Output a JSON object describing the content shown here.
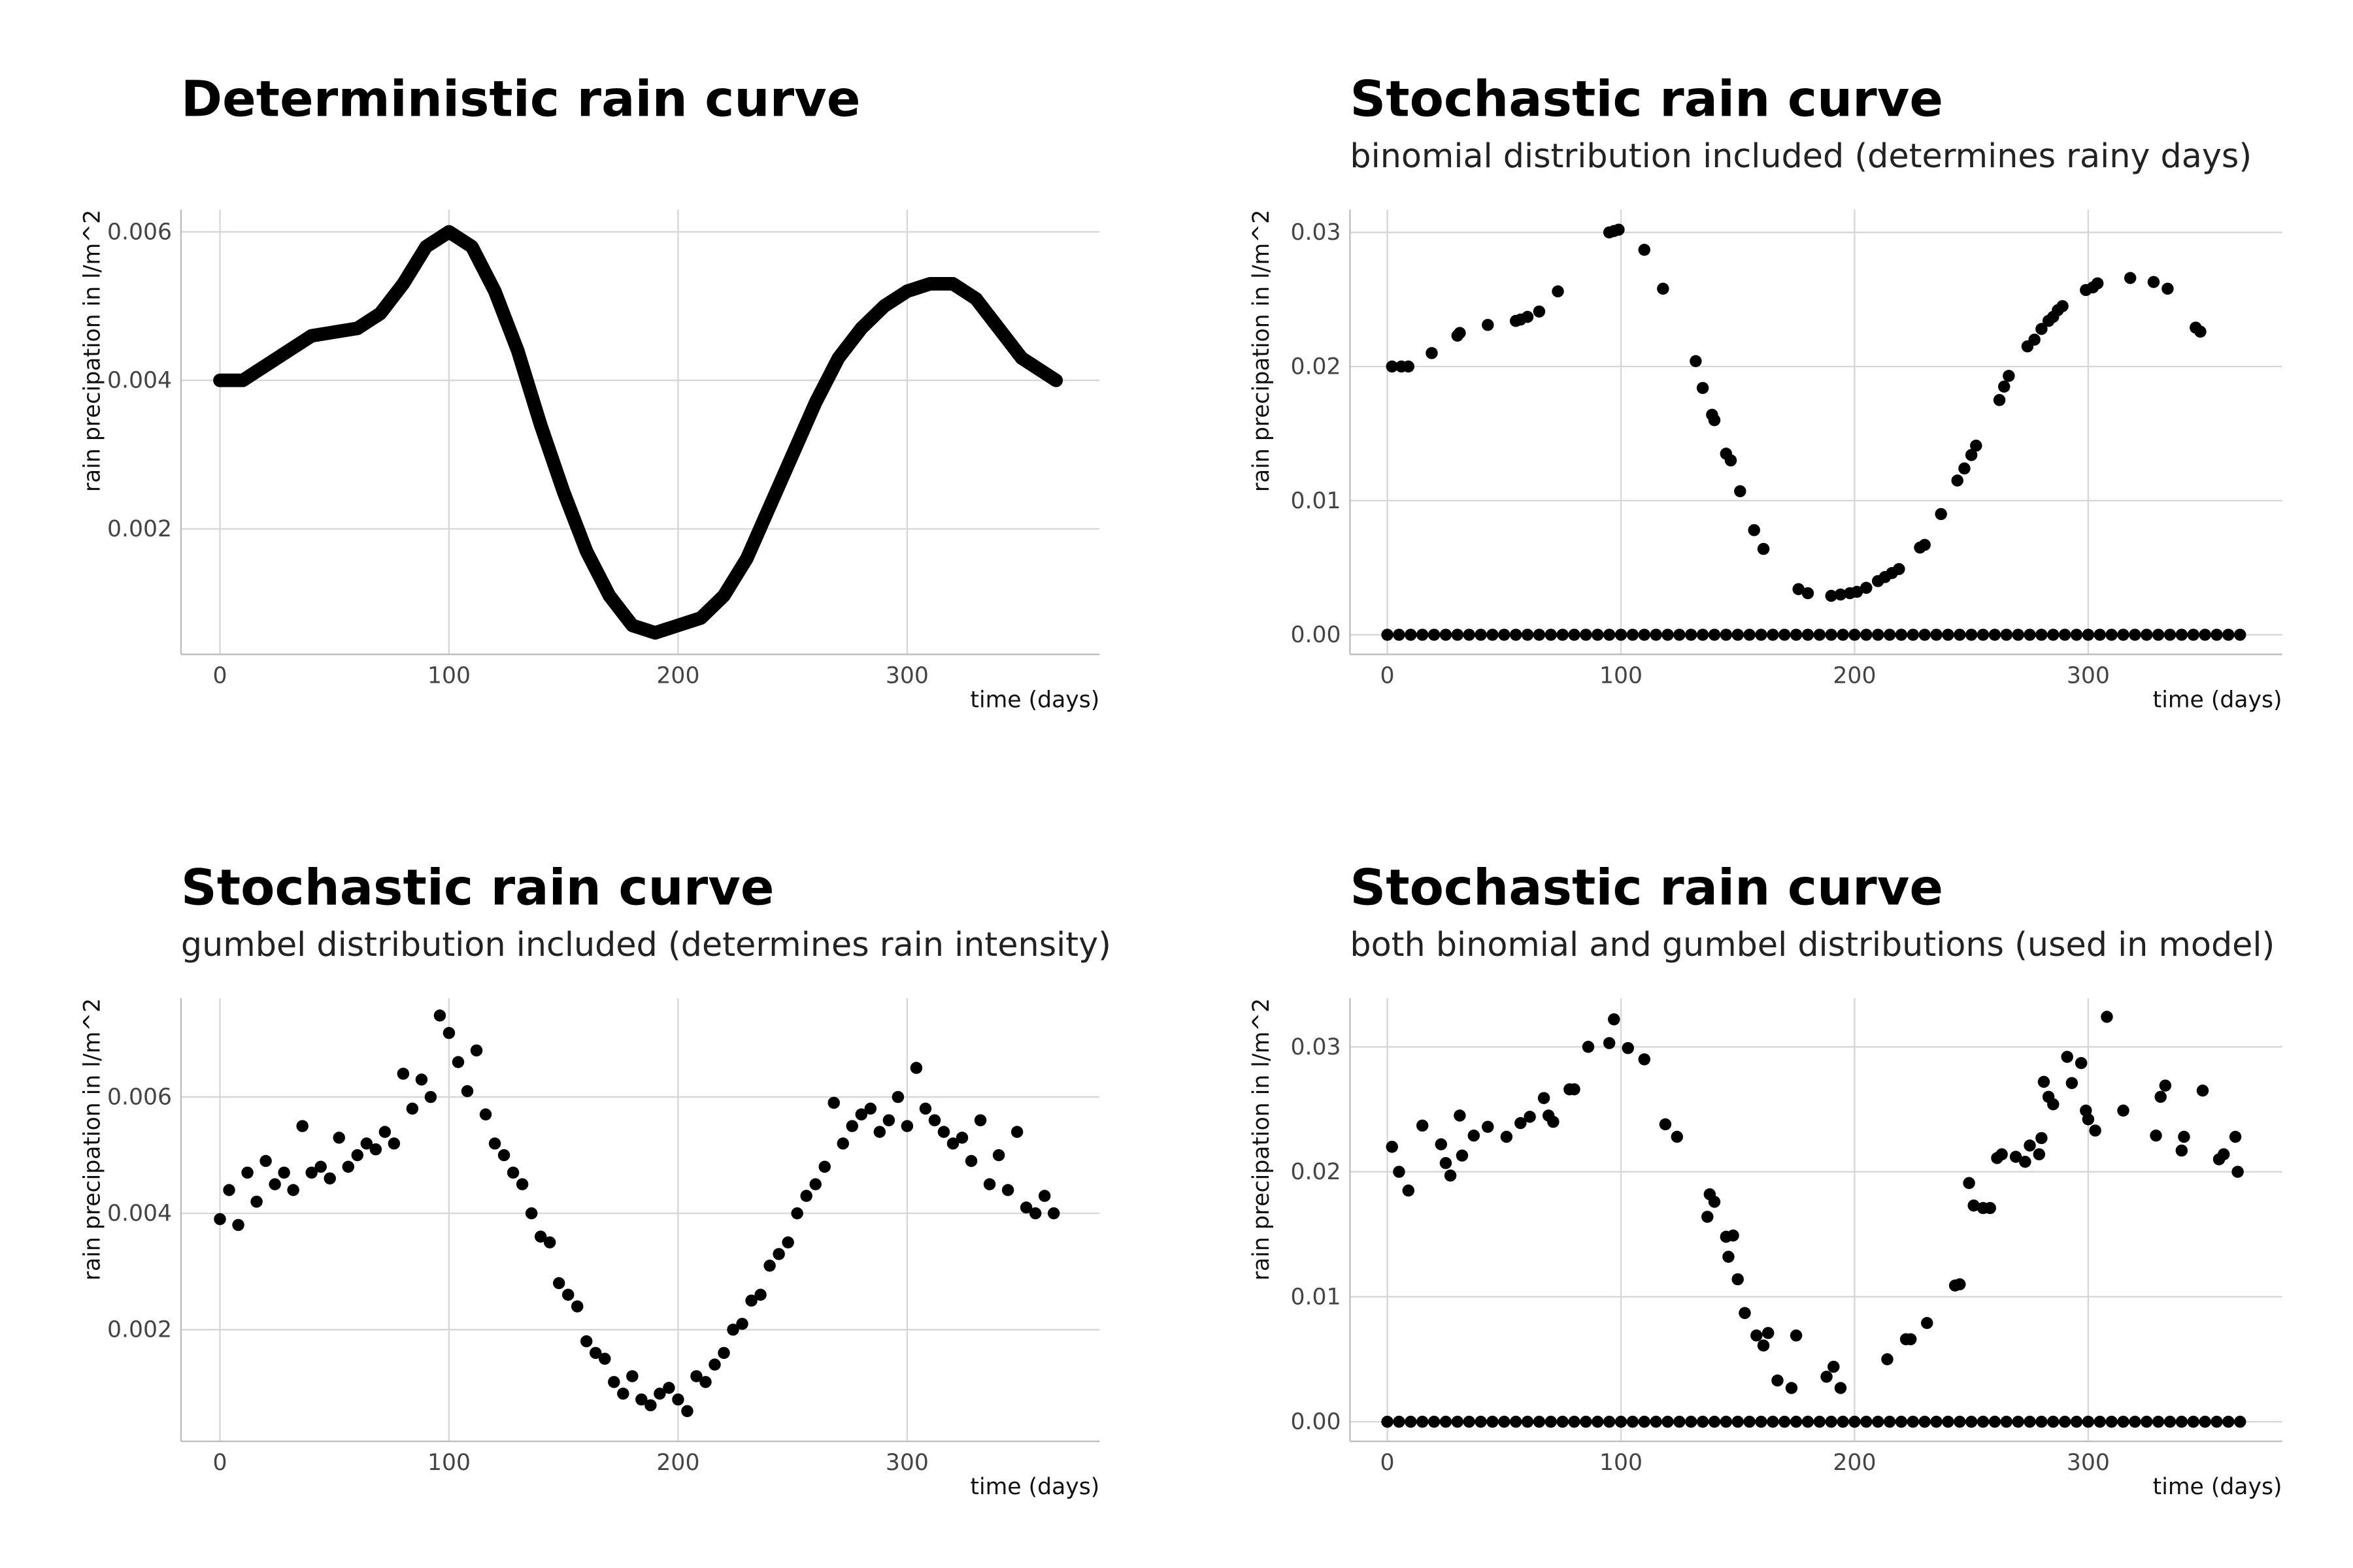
{
  "chart_data": [
    {
      "type": "line",
      "title": "Deterministic rain curve",
      "x_label": "time (days)",
      "y_label": "rain precipation in l/m^2",
      "x": [
        0,
        10,
        20,
        30,
        40,
        50,
        60,
        70,
        80,
        90,
        100,
        110,
        120,
        130,
        140,
        150,
        160,
        170,
        180,
        190,
        200,
        210,
        220,
        230,
        240,
        250,
        260,
        270,
        280,
        290,
        300,
        310,
        320,
        330,
        340,
        350,
        360,
        365
      ],
      "values": [
        0.004,
        0.004,
        0.0042,
        0.0044,
        0.0046,
        0.00465,
        0.0047,
        0.0049,
        0.0053,
        0.0058,
        0.006,
        0.0058,
        0.0052,
        0.0044,
        0.0034,
        0.0025,
        0.0017,
        0.0011,
        0.0007,
        0.0006,
        0.0007,
        0.0008,
        0.0011,
        0.0016,
        0.0023,
        0.003,
        0.0037,
        0.0043,
        0.0047,
        0.005,
        0.0052,
        0.0053,
        0.0053,
        0.0051,
        0.0047,
        0.0043,
        0.0041,
        0.004
      ],
      "color": "#000000",
      "grid": true,
      "xlim": [
        -17,
        384
      ],
      "ylim": [
        0.00031,
        0.0063
      ],
      "xticks": [
        0,
        100,
        200,
        300
      ],
      "yticks": [
        0.002,
        0.004,
        0.006
      ]
    },
    {
      "type": "scatter",
      "title": "Stochastic rain curve",
      "subtitle": "binomial distribution included (determines rainy days)",
      "x_label": "time (days)",
      "y_label": "rain precipation in l/m^2",
      "x": [
        2,
        6,
        9,
        19,
        30,
        31,
        43,
        55,
        57,
        60,
        65,
        73,
        95,
        97,
        99,
        110,
        118,
        132,
        135,
        139,
        140,
        145,
        147,
        151,
        157,
        161,
        176,
        180,
        190,
        194,
        198,
        201,
        205,
        210,
        213,
        216,
        219,
        228,
        230,
        237,
        244,
        247,
        250,
        252,
        262,
        264,
        266,
        274,
        277,
        280,
        283,
        285,
        287,
        289,
        299,
        302,
        304,
        318,
        328,
        334,
        346,
        348,
        0,
        5,
        10,
        15,
        20,
        25,
        30,
        35,
        40,
        45,
        50,
        55,
        60,
        65,
        70,
        75,
        80,
        85,
        90,
        95,
        100,
        105,
        110,
        115,
        120,
        125,
        130,
        135,
        140,
        145,
        150,
        155,
        160,
        165,
        170,
        175,
        180,
        185,
        190,
        195,
        200,
        205,
        210,
        215,
        220,
        225,
        230,
        235,
        240,
        245,
        250,
        255,
        260,
        265,
        270,
        275,
        280,
        285,
        290,
        295,
        300,
        305,
        310,
        315,
        320,
        325,
        330,
        335,
        340,
        345,
        350,
        355,
        360,
        365
      ],
      "values": [
        0.02,
        0.02,
        0.02,
        0.021,
        0.0223,
        0.0225,
        0.0231,
        0.0234,
        0.0235,
        0.0237,
        0.0241,
        0.0256,
        0.03,
        0.0301,
        0.0302,
        0.0287,
        0.0258,
        0.0204,
        0.0184,
        0.0164,
        0.016,
        0.0135,
        0.013,
        0.0107,
        0.0078,
        0.0064,
        0.0034,
        0.0031,
        0.0029,
        0.003,
        0.0031,
        0.0032,
        0.0035,
        0.004,
        0.0043,
        0.0046,
        0.0049,
        0.0065,
        0.0067,
        0.009,
        0.0115,
        0.0124,
        0.0134,
        0.0141,
        0.0175,
        0.0185,
        0.0193,
        0.0215,
        0.022,
        0.0228,
        0.0234,
        0.0237,
        0.0242,
        0.0245,
        0.0257,
        0.0259,
        0.0262,
        0.0266,
        0.0263,
        0.0258,
        0.0229,
        0.0226,
        0,
        0,
        0,
        0,
        0,
        0,
        0,
        0,
        0,
        0,
        0,
        0,
        0,
        0,
        0,
        0,
        0,
        0,
        0,
        0,
        0,
        0,
        0,
        0,
        0,
        0,
        0,
        0,
        0,
        0,
        0,
        0,
        0,
        0,
        0,
        0,
        0,
        0,
        0,
        0,
        0,
        0,
        0,
        0,
        0,
        0,
        0,
        0,
        0,
        0,
        0,
        0,
        0,
        0,
        0,
        0,
        0,
        0,
        0,
        0,
        0,
        0,
        0,
        0,
        0,
        0,
        0,
        0,
        0,
        0,
        0,
        0,
        0,
        0
      ],
      "color": "#000000",
      "grid": true,
      "xlim": [
        -16,
        383
      ],
      "ylim": [
        -0.00146,
        0.0317
      ],
      "xticks": [
        0,
        100,
        200,
        300
      ],
      "yticks": [
        {
          "value": 0,
          "label": "0.00"
        },
        {
          "value": 0.01,
          "label": "0.01"
        },
        {
          "value": 0.02,
          "label": "0.02"
        },
        {
          "value": 0.03,
          "label": "0.03"
        }
      ]
    },
    {
      "type": "scatter",
      "title": "Stochastic rain curve",
      "subtitle": "gumbel distribution included (determines rain intensity)",
      "x_label": "time (days)",
      "y_label": "rain precipation in l/m^2",
      "x": [
        0,
        4,
        8,
        12,
        16,
        20,
        24,
        28,
        32,
        36,
        40,
        44,
        48,
        52,
        56,
        60,
        64,
        68,
        72,
        76,
        80,
        84,
        88,
        92,
        96,
        100,
        104,
        108,
        112,
        116,
        120,
        124,
        128,
        132,
        136,
        140,
        144,
        148,
        152,
        156,
        160,
        164,
        168,
        172,
        176,
        180,
        184,
        188,
        192,
        196,
        200,
        204,
        208,
        212,
        216,
        220,
        224,
        228,
        232,
        236,
        240,
        244,
        248,
        252,
        256,
        260,
        264,
        268,
        272,
        276,
        280,
        284,
        288,
        292,
        296,
        300,
        304,
        308,
        312,
        316,
        320,
        324,
        328,
        332,
        336,
        340,
        344,
        348,
        352,
        356,
        360,
        364
      ],
      "values": [
        0.0039,
        0.0044,
        0.0038,
        0.0047,
        0.0042,
        0.0049,
        0.0045,
        0.0047,
        0.0044,
        0.0055,
        0.0047,
        0.0048,
        0.0046,
        0.0053,
        0.0048,
        0.005,
        0.0052,
        0.0051,
        0.0054,
        0.0052,
        0.0064,
        0.0058,
        0.0063,
        0.006,
        0.0074,
        0.0071,
        0.0066,
        0.0061,
        0.0068,
        0.0057,
        0.0052,
        0.005,
        0.0047,
        0.0045,
        0.004,
        0.0036,
        0.0035,
        0.0028,
        0.0026,
        0.0024,
        0.0018,
        0.0016,
        0.0015,
        0.0011,
        0.0009,
        0.0012,
        0.0008,
        0.0007,
        0.0009,
        0.001,
        0.0008,
        0.0006,
        0.0012,
        0.0011,
        0.0014,
        0.0016,
        0.002,
        0.0021,
        0.0025,
        0.0026,
        0.0031,
        0.0033,
        0.0035,
        0.004,
        0.0043,
        0.0045,
        0.0048,
        0.0059,
        0.0052,
        0.0055,
        0.0057,
        0.0058,
        0.0054,
        0.0056,
        0.006,
        0.0055,
        0.0065,
        0.0058,
        0.0056,
        0.0054,
        0.0052,
        0.0053,
        0.0049,
        0.0056,
        0.0045,
        0.005,
        0.0044,
        0.0054,
        0.0041,
        0.004,
        0.0043,
        0.004
      ],
      "color": "#000000",
      "grid": true,
      "xlim": [
        -17,
        384
      ],
      "ylim": [
        8e-05,
        0.0077
      ],
      "xticks": [
        0,
        100,
        200,
        300
      ],
      "yticks": [
        0.002,
        0.004,
        0.006
      ]
    },
    {
      "type": "scatter",
      "title": "Stochastic rain curve",
      "subtitle": "both binomial and gumbel distributions (used in model)",
      "x_label": "time (days)",
      "y_label": "rain precipation in l/m^2",
      "x": [
        2,
        5,
        9,
        15,
        23,
        25,
        27,
        31,
        32,
        37,
        43,
        51,
        57,
        61,
        67,
        69,
        71,
        78,
        80,
        86,
        95,
        97,
        103,
        110,
        119,
        124,
        137,
        138,
        140,
        145,
        146,
        148,
        150,
        153,
        158,
        161,
        163,
        167,
        173,
        175,
        188,
        191,
        194,
        214,
        222,
        224,
        231,
        243,
        245,
        249,
        251,
        255,
        258,
        261,
        263,
        269,
        273,
        275,
        279,
        280,
        281,
        283,
        285,
        291,
        293,
        297,
        299,
        300,
        303,
        308,
        315,
        329,
        331,
        333,
        340,
        341,
        349,
        356,
        358,
        363,
        364,
        0,
        5,
        10,
        15,
        20,
        25,
        30,
        35,
        40,
        45,
        50,
        55,
        60,
        65,
        70,
        75,
        80,
        85,
        90,
        95,
        100,
        105,
        110,
        115,
        120,
        125,
        130,
        135,
        140,
        145,
        150,
        155,
        160,
        165,
        170,
        175,
        180,
        185,
        190,
        195,
        200,
        205,
        210,
        215,
        220,
        225,
        230,
        235,
        240,
        245,
        250,
        255,
        260,
        265,
        270,
        275,
        280,
        285,
        290,
        295,
        300,
        305,
        310,
        315,
        320,
        325,
        330,
        335,
        340,
        345,
        350,
        355,
        360,
        365
      ],
      "values": [
        0.022,
        0.02,
        0.0185,
        0.0237,
        0.0222,
        0.0207,
        0.0197,
        0.0245,
        0.0213,
        0.0229,
        0.0236,
        0.0228,
        0.0239,
        0.0244,
        0.0259,
        0.0245,
        0.024,
        0.0266,
        0.0266,
        0.03,
        0.0303,
        0.0322,
        0.0299,
        0.029,
        0.0238,
        0.0228,
        0.0164,
        0.0182,
        0.0176,
        0.0148,
        0.0132,
        0.0149,
        0.0114,
        0.0087,
        0.0069,
        0.0061,
        0.0071,
        0.0033,
        0.0027,
        0.0069,
        0.0036,
        0.0044,
        0.0027,
        0.005,
        0.0066,
        0.0066,
        0.0079,
        0.0109,
        0.011,
        0.0191,
        0.0173,
        0.0171,
        0.0171,
        0.0211,
        0.0214,
        0.0212,
        0.0208,
        0.0221,
        0.0214,
        0.0227,
        0.0272,
        0.026,
        0.0254,
        0.0292,
        0.0271,
        0.0287,
        0.0249,
        0.0242,
        0.0233,
        0.0324,
        0.0249,
        0.0229,
        0.026,
        0.0269,
        0.0217,
        0.0228,
        0.0265,
        0.021,
        0.0214,
        0.0228,
        0.02,
        0,
        0,
        0,
        0,
        0,
        0,
        0,
        0,
        0,
        0,
        0,
        0,
        0,
        0,
        0,
        0,
        0,
        0,
        0,
        0,
        0,
        0,
        0,
        0,
        0,
        0,
        0,
        0,
        0,
        0,
        0,
        0,
        0,
        0,
        0,
        0,
        0,
        0,
        0,
        0,
        0,
        0,
        0,
        0,
        0,
        0,
        0,
        0,
        0,
        0,
        0,
        0,
        0,
        0,
        0,
        0,
        0,
        0,
        0,
        0,
        0,
        0,
        0,
        0,
        0,
        0,
        0,
        0,
        0,
        0,
        0,
        0,
        0,
        0
      ],
      "color": "#000000",
      "grid": true,
      "xlim": [
        -16,
        383
      ],
      "ylim": [
        -0.00157,
        0.0339
      ],
      "xticks": [
        0,
        100,
        200,
        300
      ],
      "yticks": [
        {
          "value": 0,
          "label": "0.00"
        },
        {
          "value": 0.01,
          "label": "0.01"
        },
        {
          "value": 0.02,
          "label": "0.02"
        },
        {
          "value": 0.03,
          "label": "0.03"
        }
      ]
    }
  ]
}
